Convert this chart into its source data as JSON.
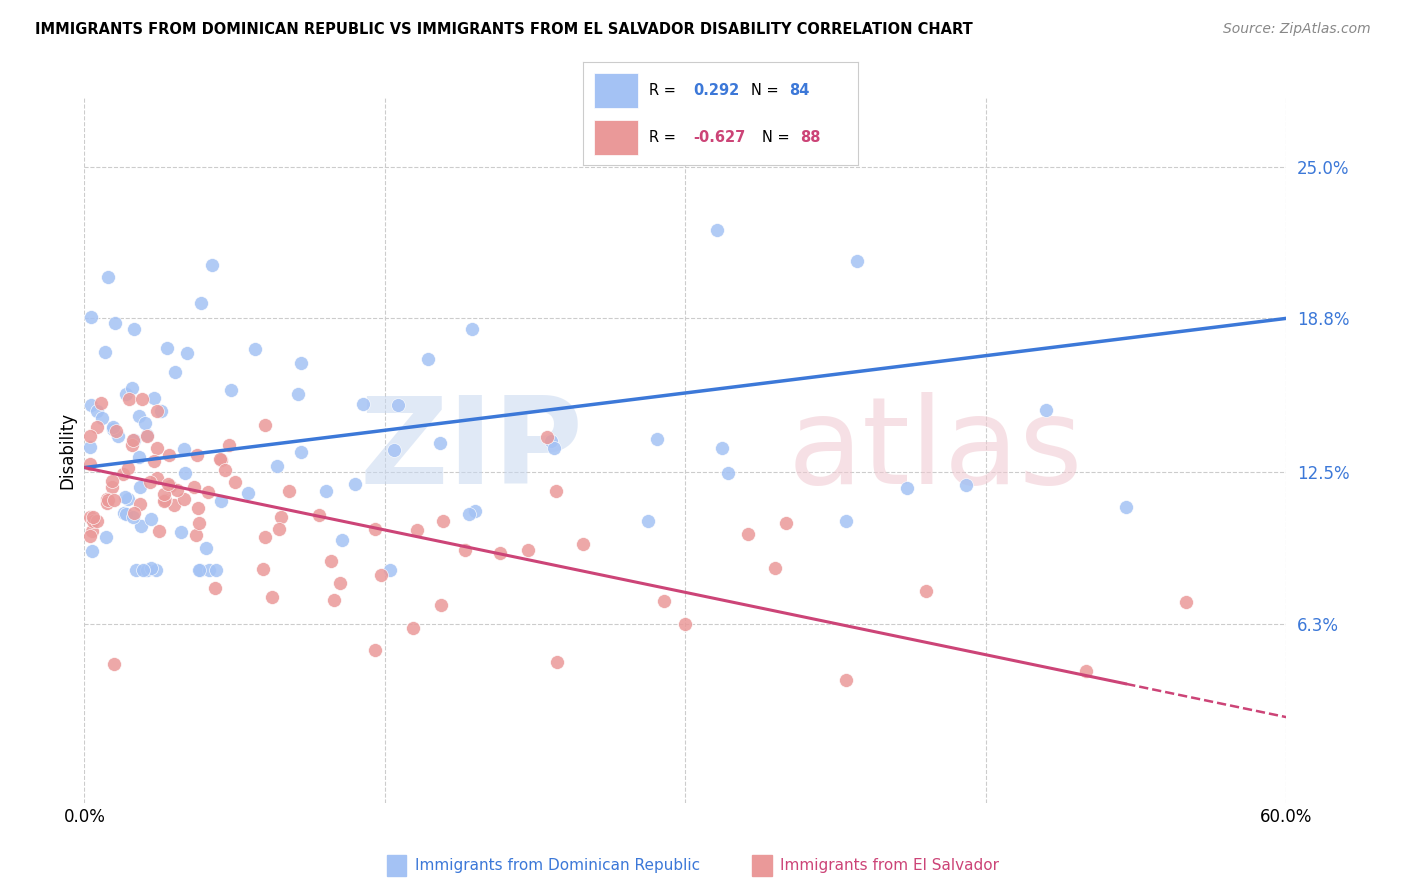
{
  "title": "IMMIGRANTS FROM DOMINICAN REPUBLIC VS IMMIGRANTS FROM EL SALVADOR DISABILITY CORRELATION CHART",
  "source": "Source: ZipAtlas.com",
  "ylabel": "Disability",
  "blue_color": "#a4c2f4",
  "blue_line_color": "#3c78d8",
  "pink_color": "#ea9999",
  "pink_line_color": "#cc4477",
  "r_blue": 0.292,
  "n_blue": 84,
  "r_pink": -0.627,
  "n_pink": 88,
  "xmin": 0.0,
  "xmax": 0.6,
  "ymin": -0.01,
  "ymax": 0.278,
  "yticks": [
    0.063,
    0.125,
    0.188,
    0.25
  ],
  "ytick_labels": [
    "6.3%",
    "12.5%",
    "18.8%",
    "25.0%"
  ],
  "blue_trend_y0": 0.127,
  "blue_trend_y1": 0.188,
  "pink_trend_y0": 0.127,
  "pink_trend_y1": 0.025,
  "grid_color": "#cccccc",
  "watermark_zip_color": "#c8d8f0",
  "watermark_atlas_color": "#f0c8d0",
  "legend_r_blue_text": "0.292",
  "legend_n_blue_text": "84",
  "legend_r_pink_text": "-0.627",
  "legend_n_pink_text": "88",
  "bottom_legend_blue": "Immigrants from Dominican Republic",
  "bottom_legend_pink": "Immigrants from El Salvador"
}
